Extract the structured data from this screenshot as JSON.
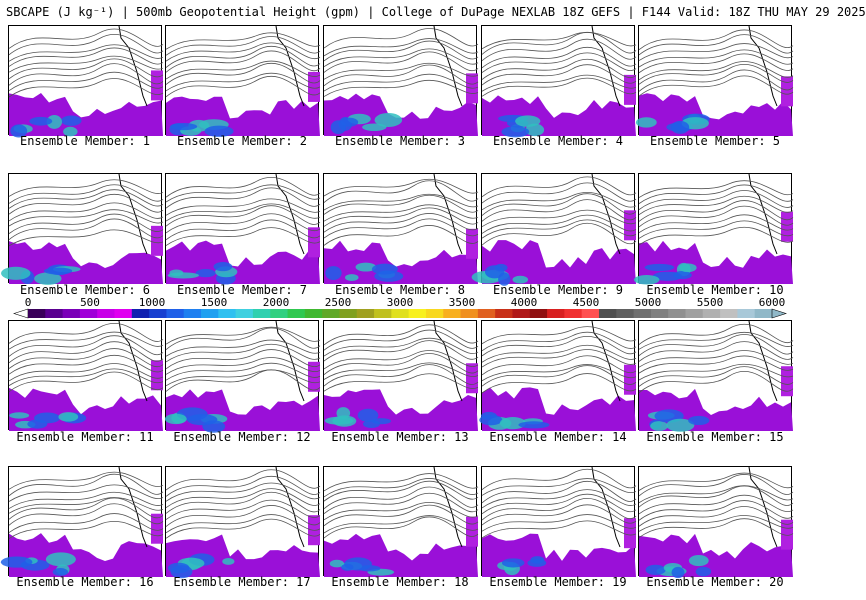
{
  "title": "SBCAPE (J kg⁻¹) | 500mb Geopotential Height (gpm) | College of DuPage NEXLAB 18Z GEFS | F144 Valid: 18Z THU MAY 29 2025",
  "members": [
    {
      "label": "Ensemble Member: 1"
    },
    {
      "label": "Ensemble Member: 2"
    },
    {
      "label": "Ensemble Member: 3"
    },
    {
      "label": "Ensemble Member: 4"
    },
    {
      "label": "Ensemble Member: 5"
    },
    {
      "label": "Ensemble Member: 6"
    },
    {
      "label": "Ensemble Member: 7"
    },
    {
      "label": "Ensemble Member: 8"
    },
    {
      "label": "Ensemble Member: 9"
    },
    {
      "label": "Ensemble Member: 10"
    },
    {
      "label": "Ensemble Member: 11"
    },
    {
      "label": "Ensemble Member: 12"
    },
    {
      "label": "Ensemble Member: 13"
    },
    {
      "label": "Ensemble Member: 14"
    },
    {
      "label": "Ensemble Member: 15"
    },
    {
      "label": "Ensemble Member: 16"
    },
    {
      "label": "Ensemble Member: 17"
    },
    {
      "label": "Ensemble Member: 18"
    },
    {
      "label": "Ensemble Member: 19"
    },
    {
      "label": "Ensemble Member: 20"
    }
  ],
  "colorbar": {
    "ticks": [
      "0",
      "500",
      "1000",
      "1500",
      "2000",
      "2500",
      "3000",
      "3500",
      "4000",
      "4500",
      "5000",
      "5500",
      "6000"
    ],
    "colors": [
      "#3a005a",
      "#5a0090",
      "#7a00b8",
      "#a000d8",
      "#c800e8",
      "#e000f0",
      "#1020b0",
      "#1840d0",
      "#2060e8",
      "#2080f0",
      "#20a0f0",
      "#30c0f0",
      "#40d0e0",
      "#30d0b0",
      "#30d080",
      "#30c850",
      "#40b830",
      "#60a828",
      "#80a020",
      "#a0a020",
      "#c0c020",
      "#e0e020",
      "#f8f020",
      "#f8d820",
      "#f8b020",
      "#f09020",
      "#e06020",
      "#c83018",
      "#b01818",
      "#901010",
      "#d82020",
      "#f03030",
      "#ff5050",
      "#505050",
      "#606060",
      "#707070",
      "#808080",
      "#909090",
      "#a0a0a0",
      "#b0b0b0",
      "#c0c0c0",
      "#a8c8d8",
      "#90b8c8"
    ]
  }
}
